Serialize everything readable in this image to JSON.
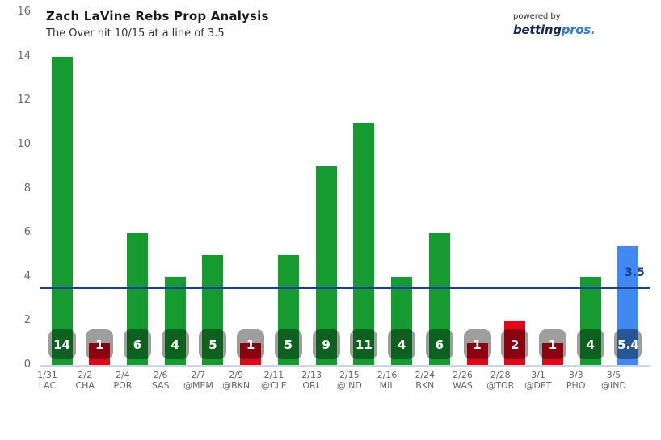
{
  "header": {
    "powered_by": "powered by",
    "brand_dark": "betting",
    "brand_light": "pros."
  },
  "chart_data": {
    "type": "bar",
    "title": "Zach LaVine Rebs Prop Analysis",
    "subtitle": "The Over hit 10/15 at a line of 3.5",
    "xlabel": "",
    "ylabel": "",
    "ylim": [
      0,
      16
    ],
    "yticks": [
      0,
      2,
      4,
      6,
      8,
      10,
      12,
      14,
      16
    ],
    "grid": false,
    "legend": false,
    "line": {
      "value": 3.5,
      "label": "3.5",
      "color": "#16418F"
    },
    "colors": {
      "over": "#169B31",
      "under": "#E2061A",
      "projection": "#4189F2",
      "badge_overlay": "rgba(0,0,0,0.38)",
      "axis_line": "#CCD6EB",
      "tick_label": "#666666"
    },
    "games": [
      {
        "date": "1/31",
        "opponent": "LAC",
        "value": 14,
        "label": "14",
        "result": "over"
      },
      {
        "date": "2/2",
        "opponent": "CHA",
        "value": 1,
        "label": "1",
        "result": "under"
      },
      {
        "date": "2/4",
        "opponent": "POR",
        "value": 6,
        "label": "6",
        "result": "over"
      },
      {
        "date": "2/6",
        "opponent": "SAS",
        "value": 4,
        "label": "4",
        "result": "over"
      },
      {
        "date": "2/7",
        "opponent": "@MEM",
        "value": 5,
        "label": "5",
        "result": "over"
      },
      {
        "date": "2/9",
        "opponent": "@BKN",
        "value": 1,
        "label": "1",
        "result": "under"
      },
      {
        "date": "2/11",
        "opponent": "@CLE",
        "value": 5,
        "label": "5",
        "result": "over"
      },
      {
        "date": "2/13",
        "opponent": "ORL",
        "value": 9,
        "label": "9",
        "result": "over"
      },
      {
        "date": "2/15",
        "opponent": "@IND",
        "value": 11,
        "label": "11",
        "result": "over"
      },
      {
        "date": "2/16",
        "opponent": "MIL",
        "value": 4,
        "label": "4",
        "result": "over"
      },
      {
        "date": "2/24",
        "opponent": "BKN",
        "value": 6,
        "label": "6",
        "result": "over"
      },
      {
        "date": "2/26",
        "opponent": "WAS",
        "value": 1,
        "label": "1",
        "result": "under"
      },
      {
        "date": "2/28",
        "opponent": "@TOR",
        "value": 2,
        "label": "2",
        "result": "under"
      },
      {
        "date": "3/1",
        "opponent": "@DET",
        "value": 1,
        "label": "1",
        "result": "under"
      },
      {
        "date": "3/3",
        "opponent": "PHO",
        "value": 4,
        "label": "4",
        "result": "over"
      },
      {
        "date": "3/5",
        "opponent": "@IND",
        "value": 5.4,
        "label": "5.4",
        "result": "projection"
      }
    ]
  }
}
